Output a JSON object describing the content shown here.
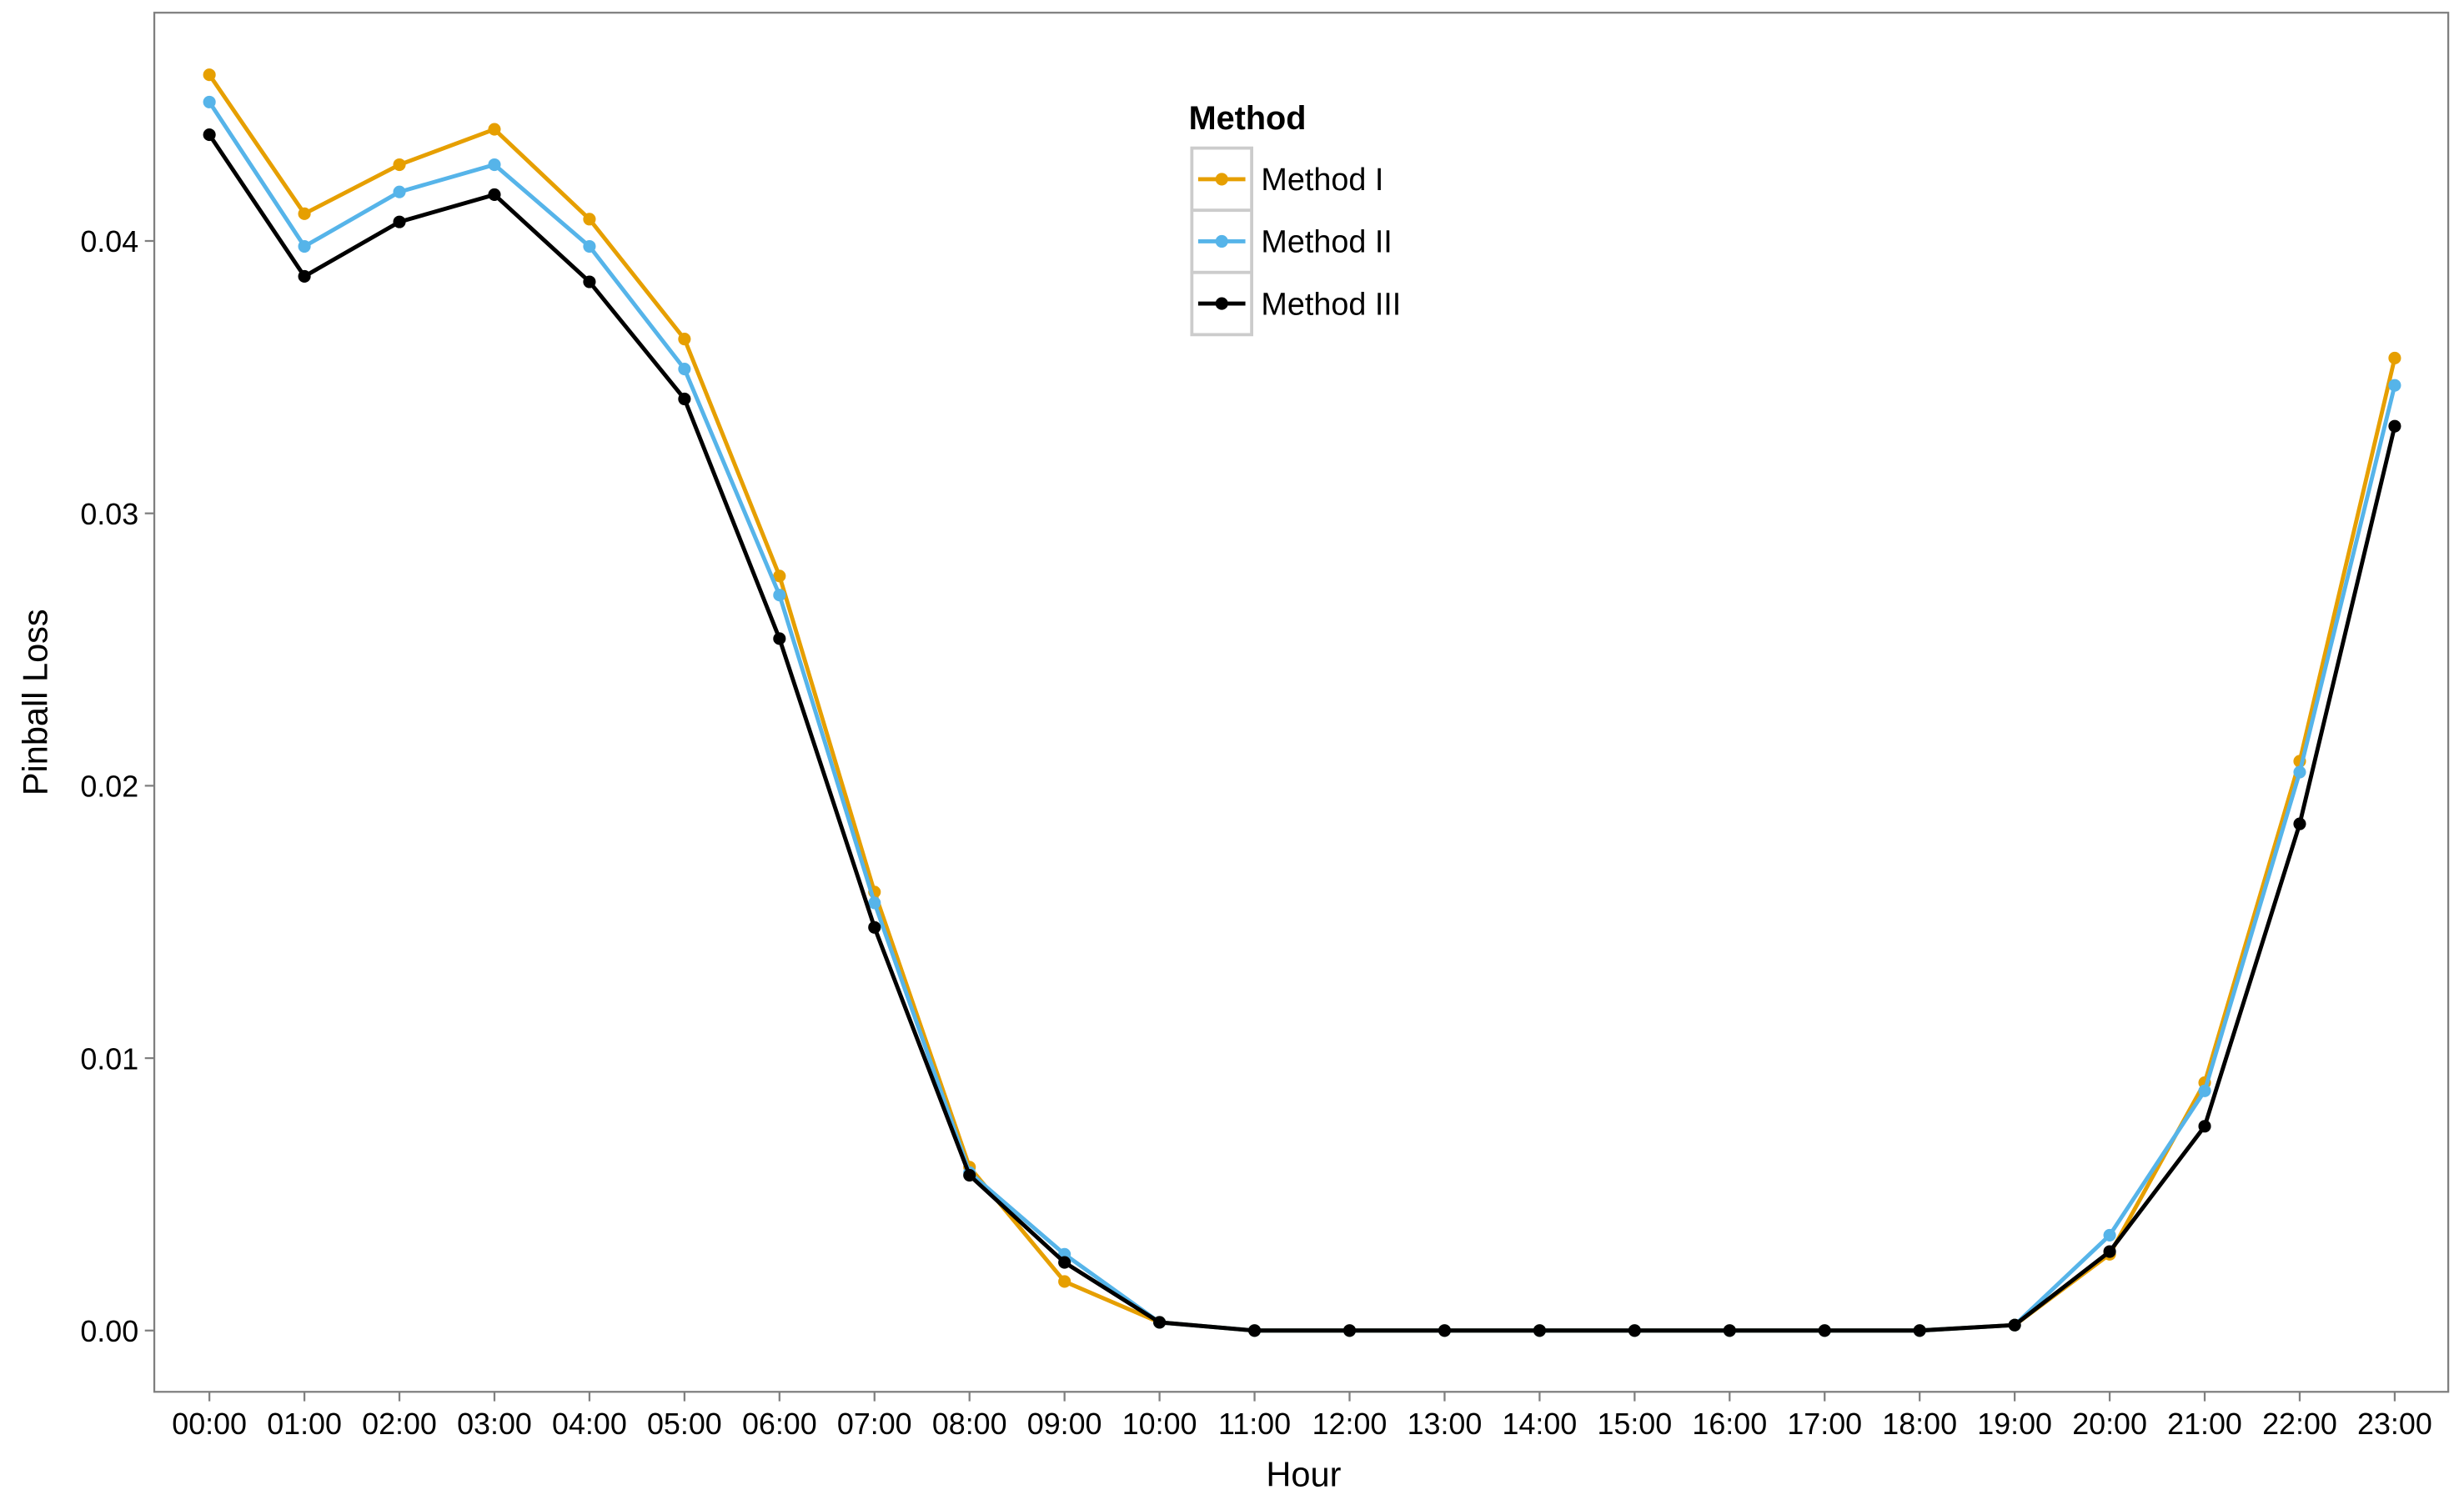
{
  "chart_data": {
    "type": "line",
    "x_label": "Hour",
    "y_label": "Pinball Loss",
    "legend_title": "Method",
    "legend_position": "top",
    "categories": [
      "00:00",
      "01:00",
      "02:00",
      "03:00",
      "04:00",
      "05:00",
      "06:00",
      "07:00",
      "08:00",
      "09:00",
      "10:00",
      "11:00",
      "12:00",
      "13:00",
      "14:00",
      "15:00",
      "16:00",
      "17:00",
      "18:00",
      "19:00",
      "20:00",
      "21:00",
      "22:00",
      "23:00"
    ],
    "series": [
      {
        "name": "Method I",
        "color": "#E69F00",
        "values": [
          0.0461,
          0.041,
          0.0428,
          0.0441,
          0.0408,
          0.0364,
          0.0277,
          0.0161,
          0.006,
          0.0018,
          0.0003,
          0,
          0,
          0,
          0,
          0,
          0,
          0,
          0,
          0.0002,
          0.0028,
          0.0091,
          0.0209,
          0.0357
        ]
      },
      {
        "name": "Method II",
        "color": "#56B4E9",
        "values": [
          0.0451,
          0.0398,
          0.0418,
          0.0428,
          0.0398,
          0.0353,
          0.027,
          0.0157,
          0.0058,
          0.0028,
          0.0003,
          0,
          0,
          0,
          0,
          0,
          0,
          0,
          0,
          0.0002,
          0.0035,
          0.0088,
          0.0205,
          0.0347
        ]
      },
      {
        "name": "Method III",
        "color": "#000000",
        "values": [
          0.0439,
          0.0387,
          0.0407,
          0.0417,
          0.0385,
          0.0342,
          0.0254,
          0.0148,
          0.0057,
          0.0025,
          0.0003,
          0,
          0,
          0,
          0,
          0,
          0,
          0,
          0,
          0.0002,
          0.0029,
          0.0075,
          0.0186,
          0.0332
        ]
      }
    ],
    "ylim": [
      -0.00225,
      0.04838
    ],
    "yticks": [
      {
        "value": 0,
        "label": "0.00"
      },
      0.01,
      0.02,
      0.03,
      0.04
    ],
    "grid": false
  }
}
